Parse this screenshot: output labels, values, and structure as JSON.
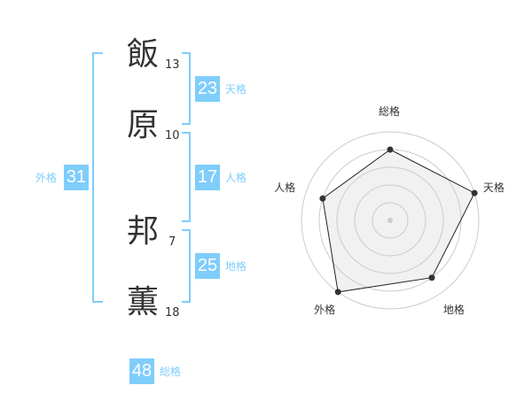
{
  "name": {
    "characters": [
      {
        "char": "飯",
        "strokes": "13"
      },
      {
        "char": "原",
        "strokes": "10"
      },
      {
        "char": "邦",
        "strokes": "7"
      },
      {
        "char": "薫",
        "strokes": "18"
      }
    ]
  },
  "fortunes": {
    "tenkaku": {
      "value": "23",
      "label": "天格"
    },
    "jinkaku": {
      "value": "17",
      "label": "人格"
    },
    "chikaku": {
      "value": "25",
      "label": "地格"
    },
    "gaikaku": {
      "value": "31",
      "label": "外格"
    },
    "soukaku": {
      "value": "48",
      "label": "総格"
    }
  },
  "accent_color": "#7fcdfb",
  "chart_data": {
    "type": "radar",
    "categories": [
      "総格",
      "天格",
      "地格",
      "外格",
      "人格"
    ],
    "values": [
      4,
      5,
      4,
      5,
      4
    ],
    "rlim": [
      0,
      5
    ],
    "grid": true
  }
}
